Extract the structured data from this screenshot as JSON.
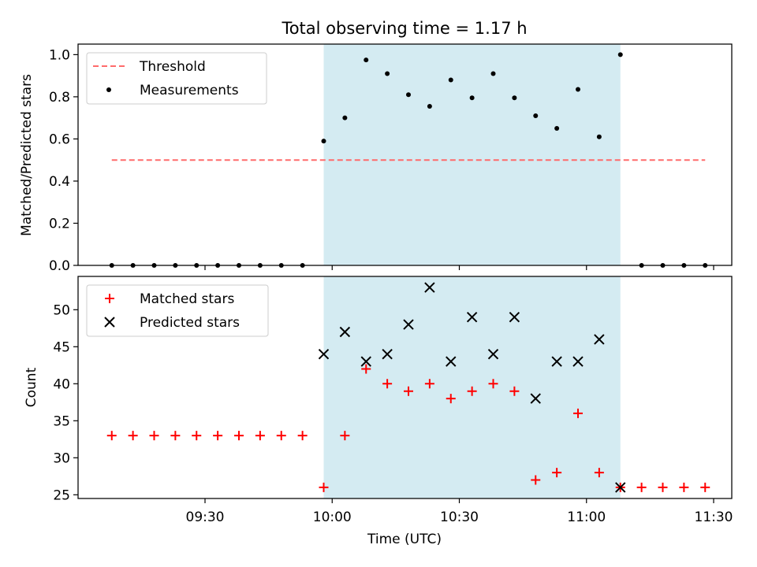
{
  "figure": {
    "title": "Total observing time = 1.17 h"
  },
  "chart_data": [
    {
      "type": "scatter",
      "panel": "top",
      "ylabel": "Matched/Predicted stars",
      "xlabel": "",
      "ylim": [
        0,
        1.05
      ],
      "yticks": [
        "0.0",
        "0.2",
        "0.4",
        "0.6",
        "0.8",
        "1.0"
      ],
      "grid": false,
      "legend_position": "upper-left",
      "shaded_interval": [
        "09:58",
        "11:08"
      ],
      "shade_color": "#add8e6",
      "series": [
        {
          "name": "Threshold",
          "kind": "dashed-line",
          "color": "#ff6b6b",
          "points": [
            {
              "x": "09:08",
              "y": 0.5
            },
            {
              "x": "11:28",
              "y": 0.5
            }
          ]
        },
        {
          "name": "Measurements",
          "kind": "dot",
          "color": "#000000",
          "points": [
            {
              "x": "09:08",
              "y": 0
            },
            {
              "x": "09:13",
              "y": 0
            },
            {
              "x": "09:18",
              "y": 0
            },
            {
              "x": "09:23",
              "y": 0
            },
            {
              "x": "09:28",
              "y": 0
            },
            {
              "x": "09:33",
              "y": 0
            },
            {
              "x": "09:38",
              "y": 0
            },
            {
              "x": "09:43",
              "y": 0
            },
            {
              "x": "09:48",
              "y": 0
            },
            {
              "x": "09:53",
              "y": 0
            },
            {
              "x": "09:58",
              "y": 0.59
            },
            {
              "x": "10:03",
              "y": 0.7
            },
            {
              "x": "10:08",
              "y": 0.975
            },
            {
              "x": "10:13",
              "y": 0.91
            },
            {
              "x": "10:18",
              "y": 0.81
            },
            {
              "x": "10:23",
              "y": 0.755
            },
            {
              "x": "10:28",
              "y": 0.88
            },
            {
              "x": "10:33",
              "y": 0.795
            },
            {
              "x": "10:38",
              "y": 0.91
            },
            {
              "x": "10:43",
              "y": 0.795
            },
            {
              "x": "10:48",
              "y": 0.71
            },
            {
              "x": "10:53",
              "y": 0.65
            },
            {
              "x": "10:58",
              "y": 0.835
            },
            {
              "x": "11:03",
              "y": 0.61
            },
            {
              "x": "11:08",
              "y": 1.0
            },
            {
              "x": "11:13",
              "y": 0
            },
            {
              "x": "11:18",
              "y": 0
            },
            {
              "x": "11:23",
              "y": 0
            },
            {
              "x": "11:28",
              "y": 0
            }
          ]
        }
      ]
    },
    {
      "type": "scatter",
      "panel": "bottom",
      "ylabel": "Count",
      "xlabel": "Time (UTC)",
      "ylim": [
        24.5,
        54.5
      ],
      "yticks": [
        "25",
        "30",
        "35",
        "40",
        "45",
        "50"
      ],
      "xticks": [
        "09:30",
        "10:00",
        "10:30",
        "11:00",
        "11:30"
      ],
      "grid": false,
      "legend_position": "upper-left",
      "shaded_interval": [
        "09:58",
        "11:08"
      ],
      "shade_color": "#add8e6",
      "series": [
        {
          "name": "Matched stars",
          "kind": "plus",
          "color": "#ff0000",
          "points": [
            {
              "x": "09:08",
              "y": 33
            },
            {
              "x": "09:13",
              "y": 33
            },
            {
              "x": "09:18",
              "y": 33
            },
            {
              "x": "09:23",
              "y": 33
            },
            {
              "x": "09:28",
              "y": 33
            },
            {
              "x": "09:33",
              "y": 33
            },
            {
              "x": "09:38",
              "y": 33
            },
            {
              "x": "09:43",
              "y": 33
            },
            {
              "x": "09:48",
              "y": 33
            },
            {
              "x": "09:53",
              "y": 33
            },
            {
              "x": "09:58",
              "y": 26
            },
            {
              "x": "10:03",
              "y": 33
            },
            {
              "x": "10:08",
              "y": 42
            },
            {
              "x": "10:13",
              "y": 40
            },
            {
              "x": "10:18",
              "y": 39
            },
            {
              "x": "10:23",
              "y": 40
            },
            {
              "x": "10:28",
              "y": 38
            },
            {
              "x": "10:33",
              "y": 39
            },
            {
              "x": "10:38",
              "y": 40
            },
            {
              "x": "10:43",
              "y": 39
            },
            {
              "x": "10:48",
              "y": 27
            },
            {
              "x": "10:53",
              "y": 28
            },
            {
              "x": "10:58",
              "y": 36
            },
            {
              "x": "11:03",
              "y": 28
            },
            {
              "x": "11:08",
              "y": 26
            },
            {
              "x": "11:13",
              "y": 26
            },
            {
              "x": "11:18",
              "y": 26
            },
            {
              "x": "11:23",
              "y": 26
            },
            {
              "x": "11:28",
              "y": 26
            }
          ]
        },
        {
          "name": "Predicted stars",
          "kind": "x",
          "color": "#000000",
          "points": [
            {
              "x": "09:58",
              "y": 44
            },
            {
              "x": "10:03",
              "y": 47
            },
            {
              "x": "10:08",
              "y": 43
            },
            {
              "x": "10:13",
              "y": 44
            },
            {
              "x": "10:18",
              "y": 48
            },
            {
              "x": "10:23",
              "y": 53
            },
            {
              "x": "10:28",
              "y": 43
            },
            {
              "x": "10:33",
              "y": 49
            },
            {
              "x": "10:38",
              "y": 44
            },
            {
              "x": "10:43",
              "y": 49
            },
            {
              "x": "10:48",
              "y": 38
            },
            {
              "x": "10:53",
              "y": 43
            },
            {
              "x": "10:58",
              "y": 43
            },
            {
              "x": "11:03",
              "y": 46
            },
            {
              "x": "11:08",
              "y": 26
            }
          ]
        }
      ]
    }
  ]
}
